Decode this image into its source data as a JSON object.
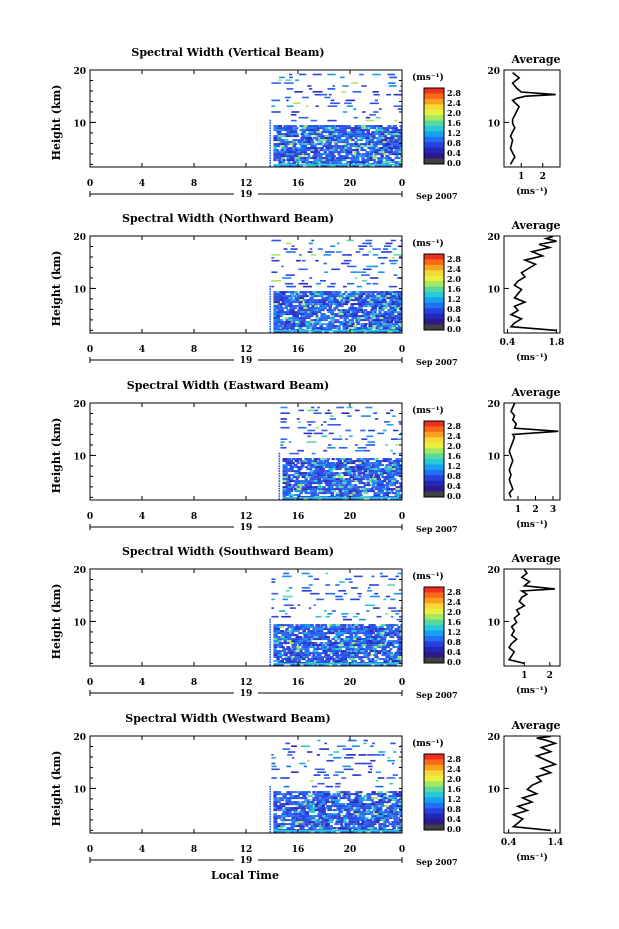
{
  "figure": {
    "xlabel": "Local Time",
    "date_label": "Sep 2007",
    "day_label": "19"
  },
  "colorbar": {
    "unit_label": "(ms⁻¹)",
    "ticks": [
      "2.8",
      "2.4",
      "2.0",
      "1.6",
      "1.2",
      "0.8",
      "0.4",
      "0.0"
    ],
    "colors": [
      "#f03020",
      "#f86a18",
      "#f8a020",
      "#f8d838",
      "#e8f040",
      "#a8e860",
      "#58d8a0",
      "#28c8d8",
      "#18a0f0",
      "#2070f0",
      "#2840e0",
      "#2028b8",
      "#301888",
      "#404040"
    ]
  },
  "chart_data": [
    {
      "type": "heatmap",
      "title": "Spectral Width (Vertical Beam)",
      "ylabel": "Height (km)",
      "x_ticks": [
        "0",
        "4",
        "8",
        "12",
        "16",
        "20",
        "0"
      ],
      "y_ticks": [
        "20",
        "10"
      ],
      "xlim": [
        0,
        24
      ],
      "ylim": [
        1.5,
        20
      ],
      "data_start_hour": 13.8,
      "profile": {
        "title": "Average",
        "xlabel": "(ms⁻¹)",
        "x_ticks": [
          "1",
          "2"
        ],
        "y_ticks": [
          "20",
          "10"
        ],
        "xlim": [
          0.2,
          2.8
        ],
        "x": [
          0.5,
          0.6,
          0.7,
          0.6,
          0.5,
          0.55,
          0.6,
          0.5,
          0.6,
          0.7,
          0.6,
          0.6,
          0.7,
          0.8,
          0.9,
          0.7,
          0.6,
          0.8,
          1.2,
          2.6,
          1.0,
          0.8,
          0.6,
          0.9,
          0.6
        ],
        "heights": [
          2,
          2.7,
          3.4,
          4.2,
          5,
          5.8,
          6.6,
          7.4,
          8.2,
          9,
          9.8,
          10.6,
          11.4,
          12.2,
          13,
          13.8,
          14.2,
          14.6,
          15,
          15.3,
          15.8,
          16.5,
          17.5,
          18.5,
          19.5
        ]
      }
    },
    {
      "type": "heatmap",
      "title": "Spectral Width (Northward Beam)",
      "ylabel": "Height (km)",
      "x_ticks": [
        "0",
        "4",
        "8",
        "12",
        "16",
        "20",
        "0"
      ],
      "y_ticks": [
        "20",
        "10"
      ],
      "xlim": [
        0,
        24
      ],
      "ylim": [
        1.5,
        20
      ],
      "data_start_hour": 13.8,
      "profile": {
        "title": "Average",
        "xlabel": "(ms⁻¹)",
        "x_ticks": [
          "0.4",
          "1.8"
        ],
        "y_ticks": [
          "20",
          "10"
        ],
        "xlim": [
          0.3,
          1.9
        ],
        "x": [
          1.8,
          0.5,
          0.6,
          0.8,
          0.5,
          0.7,
          0.6,
          0.9,
          0.6,
          0.7,
          0.8,
          0.6,
          0.7,
          0.9,
          0.8,
          1.0,
          1.2,
          0.9,
          1.4,
          1.1,
          1.6,
          1.3,
          1.8,
          1.5,
          1.7
        ],
        "heights": [
          2,
          2.7,
          3.4,
          4.2,
          5,
          5.8,
          6.6,
          7.4,
          8.2,
          9,
          9.8,
          10.6,
          11.4,
          12.2,
          13,
          13.8,
          14.6,
          15.4,
          16.2,
          17,
          17.8,
          18.4,
          19,
          19.5,
          19.9
        ]
      }
    },
    {
      "type": "heatmap",
      "title": "Spectral Width (Eastward Beam)",
      "ylabel": "Height (km)",
      "x_ticks": [
        "0",
        "4",
        "8",
        "12",
        "16",
        "20",
        "0"
      ],
      "y_ticks": [
        "20",
        "10"
      ],
      "xlim": [
        0,
        24
      ],
      "ylim": [
        1.5,
        20
      ],
      "data_start_hour": 14.5,
      "profile": {
        "title": "Average",
        "xlabel": "(ms⁻¹)",
        "x_ticks": [
          "1",
          "2",
          "3"
        ],
        "y_ticks": [
          "20",
          "10"
        ],
        "xlim": [
          0.2,
          3.4
        ],
        "x": [
          0.6,
          0.5,
          0.7,
          0.6,
          0.5,
          0.6,
          0.5,
          0.6,
          0.7,
          0.6,
          0.5,
          0.6,
          0.7,
          0.8,
          0.7,
          3.3,
          0.8,
          0.9,
          0.7,
          0.8,
          0.6,
          0.7,
          0.8
        ],
        "heights": [
          2,
          2.8,
          3.6,
          4.5,
          5.4,
          6.3,
          7.2,
          8.1,
          9,
          9.9,
          10.8,
          11.7,
          12.6,
          13.5,
          14,
          14.6,
          15.2,
          16,
          16.8,
          17.6,
          18.4,
          19.2,
          19.9
        ]
      }
    },
    {
      "type": "heatmap",
      "title": "Spectral Width (Southward Beam)",
      "ylabel": "Height (km)",
      "x_ticks": [
        "0",
        "4",
        "8",
        "12",
        "16",
        "20",
        "0"
      ],
      "y_ticks": [
        "20",
        "10"
      ],
      "xlim": [
        0,
        24
      ],
      "ylim": [
        1.5,
        20
      ],
      "data_start_hour": 13.8,
      "profile": {
        "title": "Average",
        "xlabel": "(ms⁻¹)",
        "x_ticks": [
          "1",
          "2"
        ],
        "y_ticks": [
          "20",
          "10"
        ],
        "xlim": [
          0.2,
          2.4
        ],
        "x": [
          1.0,
          0.4,
          0.5,
          0.6,
          0.4,
          0.5,
          0.7,
          0.5,
          0.6,
          0.5,
          0.7,
          0.6,
          0.8,
          0.7,
          1.0,
          0.8,
          0.9,
          1.1,
          0.9,
          2.2,
          1.0,
          1.2,
          0.9,
          1.1,
          1.0
        ],
        "heights": [
          2,
          2.7,
          3.4,
          4.2,
          5,
          5.8,
          6.6,
          7.4,
          8.2,
          9,
          9.8,
          10.6,
          11.4,
          12.2,
          13,
          13.8,
          14.6,
          15.2,
          15.8,
          16.2,
          16.8,
          17.6,
          18.4,
          19.2,
          19.9
        ]
      }
    },
    {
      "type": "heatmap",
      "title": "Spectral Width (Westward Beam)",
      "ylabel": "Height (km)",
      "x_ticks": [
        "0",
        "4",
        "8",
        "12",
        "16",
        "20",
        "0"
      ],
      "y_ticks": [
        "20",
        "10"
      ],
      "xlim": [
        0,
        24
      ],
      "ylim": [
        1.5,
        20
      ],
      "data_start_hour": 13.8,
      "profile": {
        "title": "Average",
        "xlabel": "(ms⁻¹)",
        "x_ticks": [
          "0.4",
          "1.4"
        ],
        "y_ticks": [
          "20",
          "10"
        ],
        "xlim": [
          0.3,
          1.5
        ],
        "x": [
          1.3,
          0.5,
          0.6,
          0.7,
          0.5,
          0.8,
          0.6,
          0.9,
          0.7,
          1.0,
          0.8,
          0.9,
          1.1,
          1.0,
          1.3,
          1.1,
          1.4,
          1.2,
          1.0,
          1.3,
          1.1,
          1.4,
          1.2,
          1.0,
          1.3
        ],
        "heights": [
          2,
          2.7,
          3.4,
          4.2,
          5,
          5.8,
          6.6,
          7.4,
          8.2,
          9,
          9.8,
          10.6,
          11.4,
          12.2,
          13,
          13.8,
          14.6,
          15.4,
          16.2,
          17,
          17.8,
          18.6,
          19.2,
          19.6,
          19.9
        ]
      }
    }
  ]
}
